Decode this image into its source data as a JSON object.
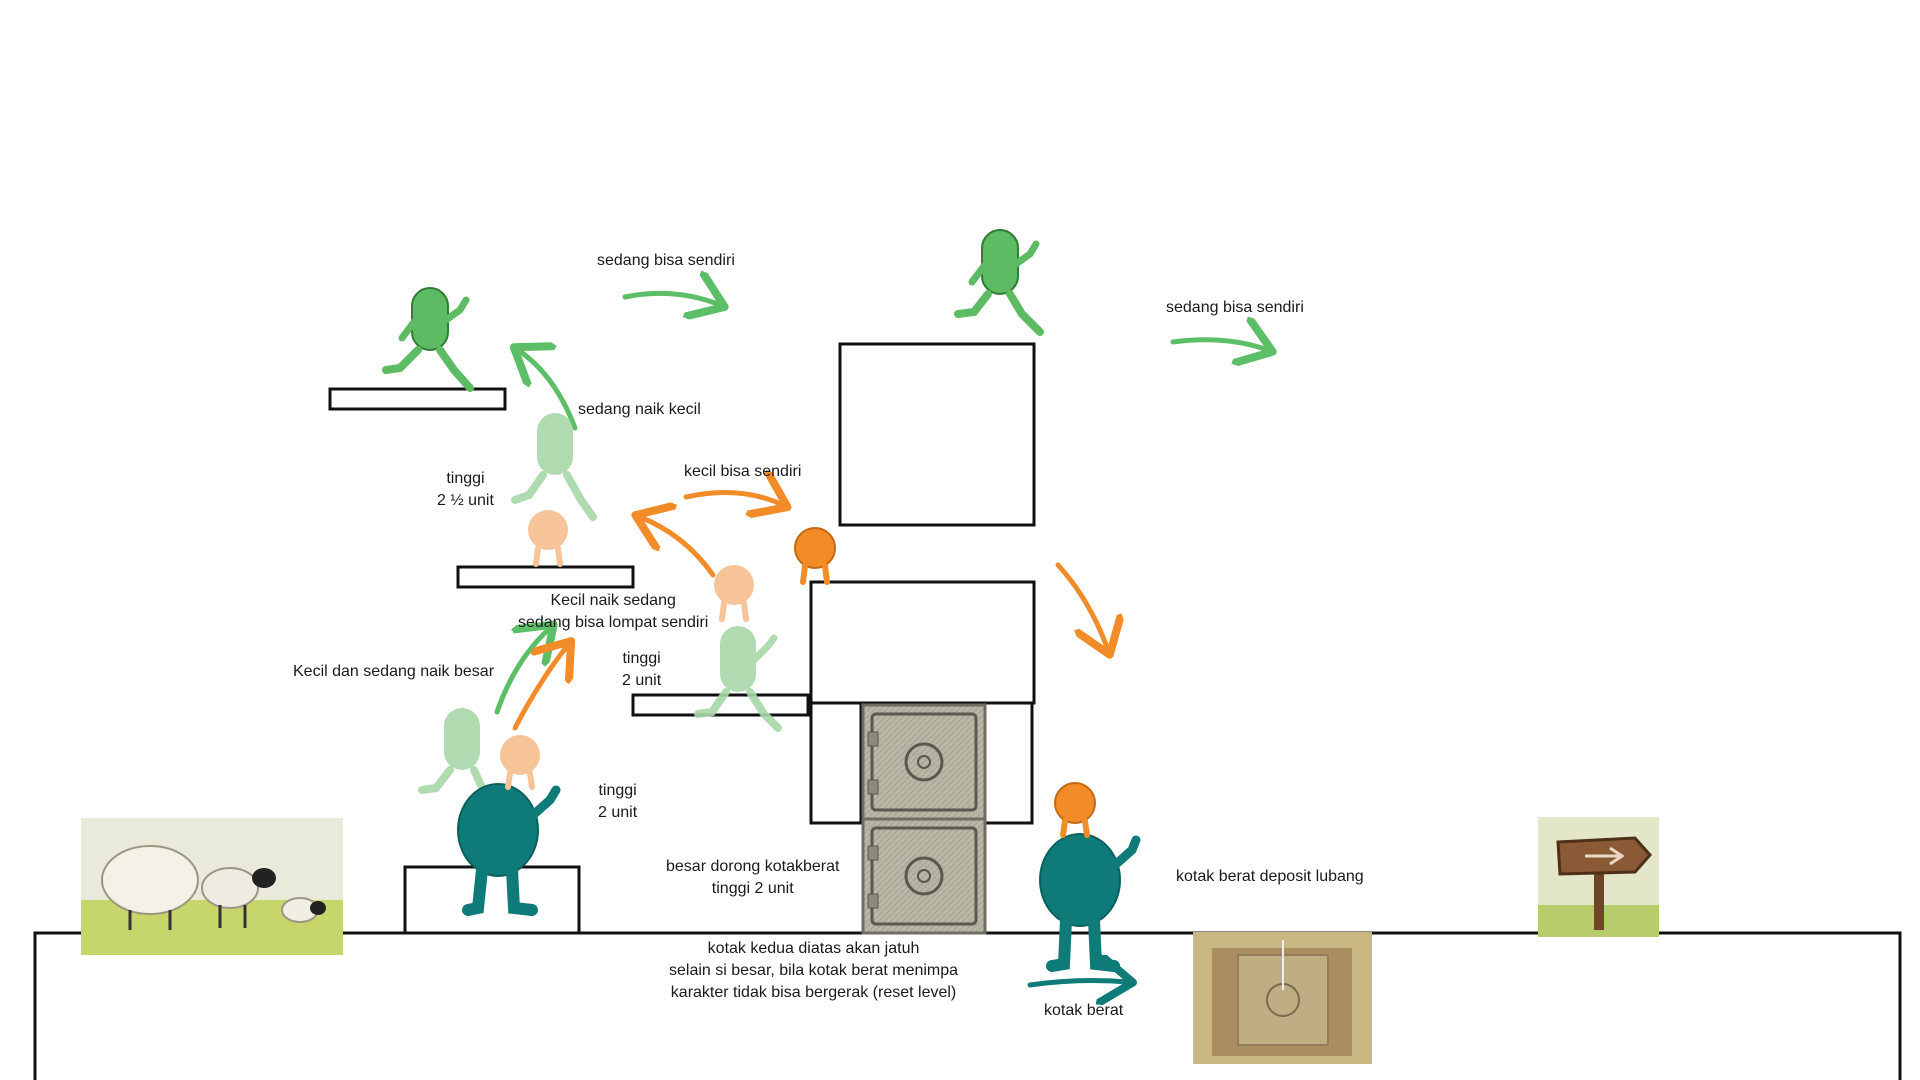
{
  "labels": {
    "sedang_bisa_sendiri_1": "sedang bisa sendiri",
    "sedang_bisa_sendiri_2": "sedang bisa sendiri",
    "sedang_naik_kecil": "sedang naik kecil",
    "kecil_bisa_sendiri": "kecil bisa sendiri",
    "tinggi_2_5_unit": "tinggi\n2 ½ unit",
    "kecil_naik_sedang": "Kecil naik sedang\nsedang bisa lompat sendiri",
    "kecil_dan_sedang_naik_besar": "Kecil dan sedang naik besar",
    "tinggi_2_unit_mid": "tinggi\n2 unit",
    "tinggi_2_unit_low": "tinggi\n2 unit",
    "besar_dorong": "besar dorong kotakberat\ntinggi 2 unit",
    "kotak_berat_deposit": "kotak berat deposit lubang",
    "kotak_kedua": "kotak kedua diatas akan jatuh\nselain si besar, bila kotak berat menimpa\nkarakter tidak bisa bergerak (reset level)",
    "kotak_berat": "kotak berat"
  },
  "colors": {
    "medium_green": "#5dbb63",
    "medium_green_faded": "#a8d8a8",
    "small_orange": "#f28c28",
    "small_orange_faded": "#f7c49a",
    "big_teal": "#0e7b78",
    "big_teal_dark": "#0a5f5c",
    "arrow_green": "#5cbf68",
    "arrow_orange": "#f28c28",
    "arrow_teal": "#0e7b78",
    "box_stroke": "#111111",
    "safe_gray": "#b8b5a6",
    "grass": "#c7d66a",
    "sign_brown": "#8a5a36"
  },
  "icons": {
    "sheep_image": "sheep-group-icon",
    "sign_image": "wooden-signpost-icon",
    "safe_image": "heavy-safe-box-icon",
    "hole_image": "hole-with-safe-icon"
  }
}
